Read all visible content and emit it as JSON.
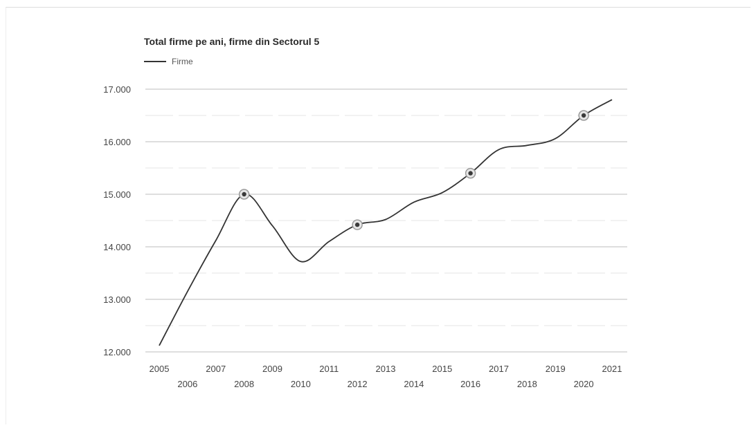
{
  "chart_data": {
    "type": "line",
    "title": "Total firme pe ani, firme din Sectorul 5",
    "legend_position": "top-left",
    "grid": true,
    "x": [
      "2005",
      "2006",
      "2007",
      "2008",
      "2009",
      "2010",
      "2011",
      "2012",
      "2013",
      "2014",
      "2015",
      "2016",
      "2017",
      "2018",
      "2019",
      "2020",
      "2021"
    ],
    "y_ticks": [
      12000,
      13000,
      14000,
      15000,
      16000,
      17000
    ],
    "y_tick_labels": [
      "12.000",
      "13.000",
      "14.000",
      "15.000",
      "16.000",
      "17.000"
    ],
    "ylim": [
      12000,
      17000
    ],
    "series": [
      {
        "name": "Firme",
        "values": [
          12120,
          13150,
          14120,
          15000,
          14400,
          13720,
          14100,
          14420,
          14520,
          14850,
          15030,
          15400,
          15850,
          15930,
          16060,
          16500,
          16800
        ],
        "marked_points": [
          3,
          7,
          11,
          15
        ]
      }
    ]
  }
}
